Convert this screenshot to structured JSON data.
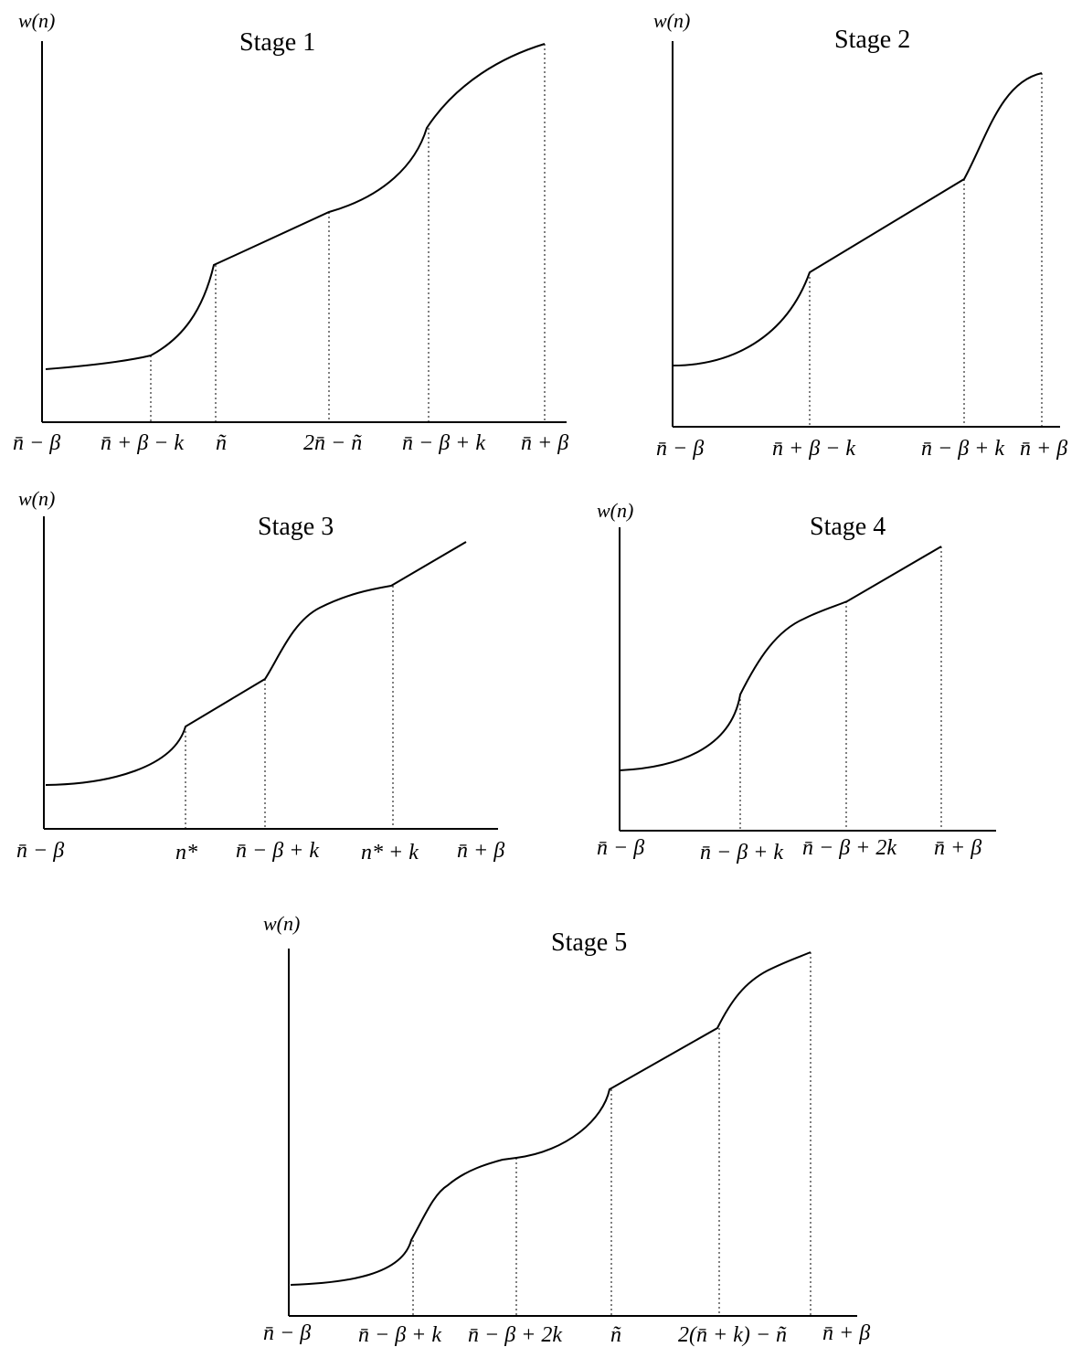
{
  "panels": [
    {
      "title": "Stage 1",
      "ylabel": "w(n)",
      "xticks": [
        "n̄ − β",
        "n̄ + β − k",
        "ñ",
        "2n̄ − ñ",
        "n̄ − β + k",
        "n̄ + β"
      ]
    },
    {
      "title": "Stage 2",
      "ylabel": "w(n)",
      "xticks": [
        "n̄ − β",
        "n̄ + β − k",
        "n̄ − β + k",
        "n̄ + β"
      ]
    },
    {
      "title": "Stage 3",
      "ylabel": "w(n)",
      "xticks": [
        "n̄ − β",
        "n*",
        "n̄ − β + k",
        "n* + k",
        "n̄ + β"
      ]
    },
    {
      "title": "Stage 4",
      "ylabel": "w(n)",
      "xticks": [
        "n̄ − β",
        "n̄ − β + k",
        "n̄ − β + 2k",
        "n̄ + β"
      ]
    },
    {
      "title": "Stage 5",
      "ylabel": "w(n)",
      "xticks": [
        "n̄ − β",
        "n̄ − β + k",
        "n̄ − β + 2k",
        "ñ",
        "2(n̄ + k) − ñ",
        "n̄ + β"
      ]
    }
  ]
}
